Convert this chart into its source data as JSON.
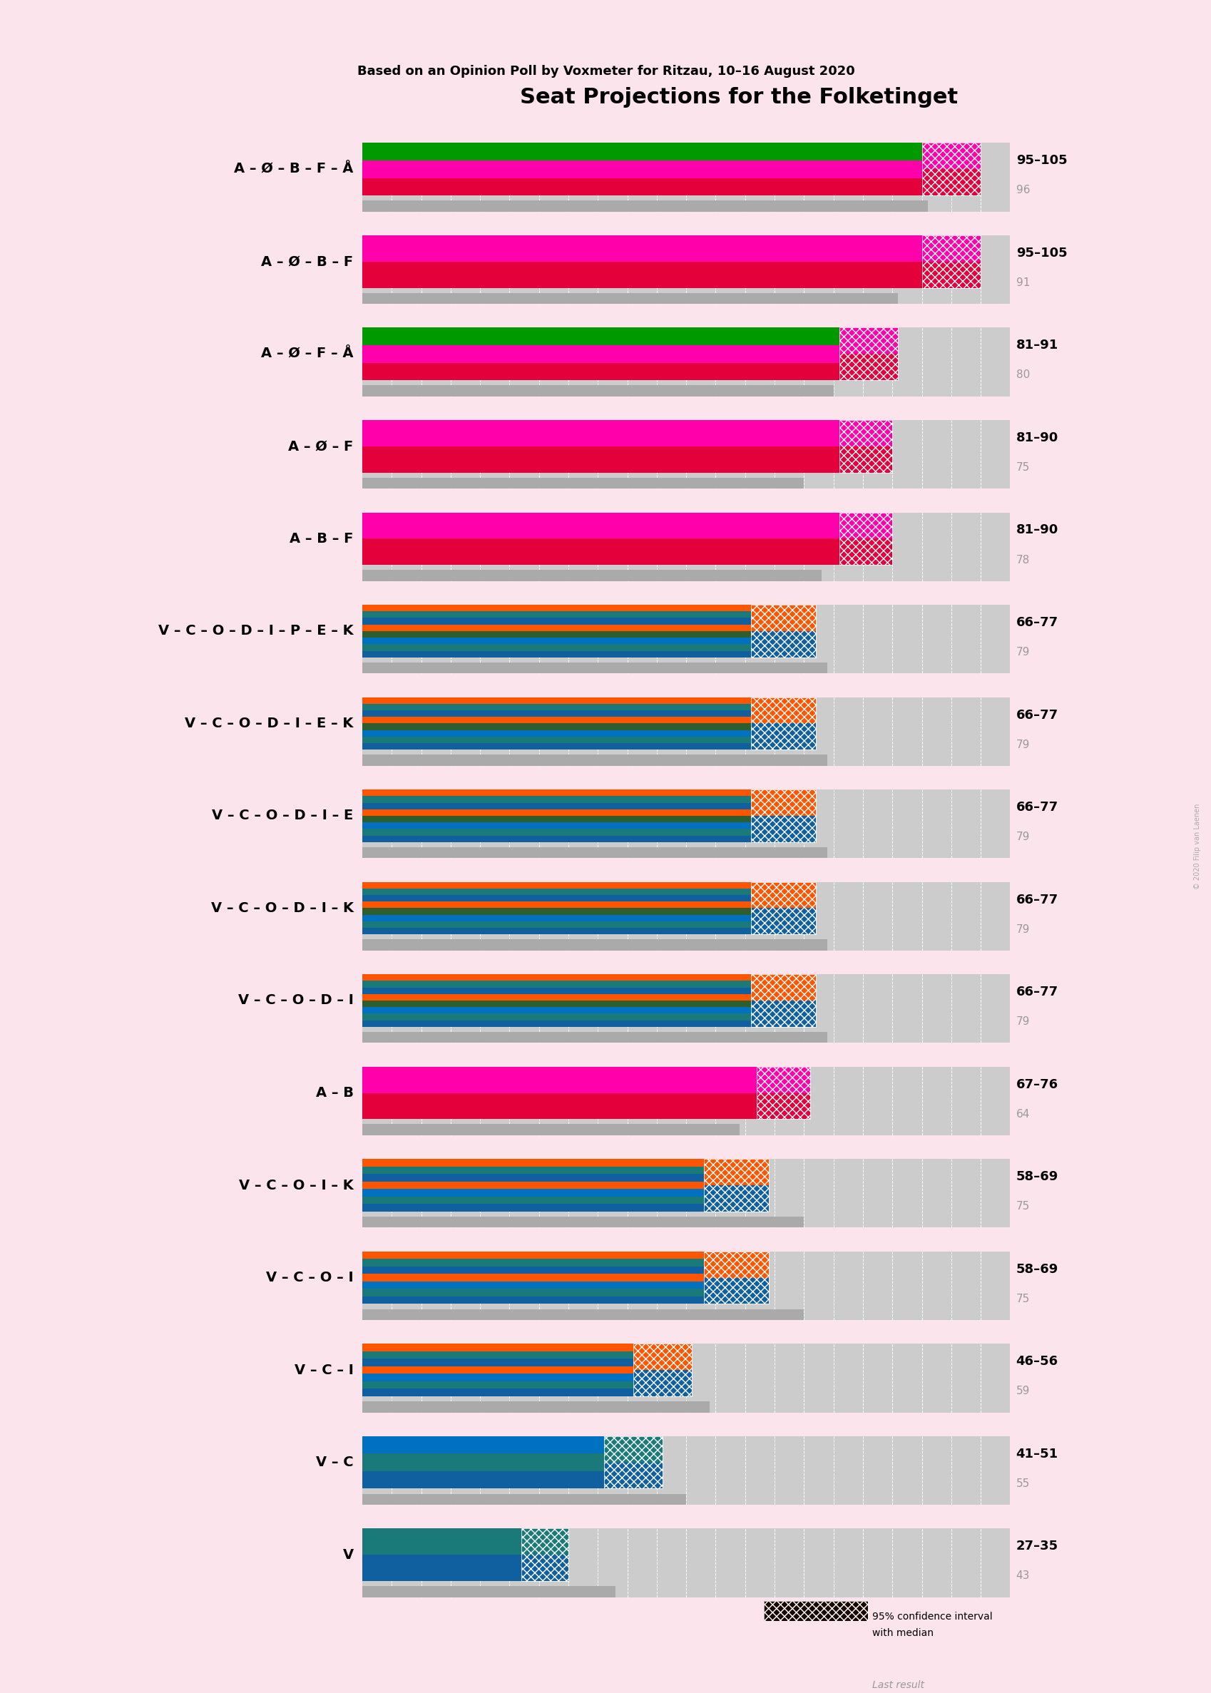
{
  "title": "Seat Projections for the Folketinget",
  "subtitle": "Based on an Opinion Poll by Voxmeter for Ritzau, 10–16 August 2020",
  "background_color": "#fce4ec",
  "watermark": "© 2020 Filip van Laenen",
  "coalitions": [
    {
      "label": "A – Ø – B – F – Å",
      "range_low": 95,
      "range_high": 105,
      "last": 96,
      "bar_colors": [
        "#E4003B",
        "#FF00AA",
        "#009900"
      ],
      "ci_colors": [
        "#E4003B",
        "#FF00AA"
      ],
      "underline": false,
      "type": "left"
    },
    {
      "label": "A – Ø – B – F",
      "range_low": 95,
      "range_high": 105,
      "last": 91,
      "bar_colors": [
        "#E4003B",
        "#FF00AA"
      ],
      "ci_colors": [
        "#E4003B",
        "#FF00AA"
      ],
      "underline": true,
      "type": "left"
    },
    {
      "label": "A – Ø – F – Å",
      "range_low": 81,
      "range_high": 91,
      "last": 80,
      "bar_colors": [
        "#E4003B",
        "#FF00AA",
        "#009900"
      ],
      "ci_colors": [
        "#E4003B",
        "#FF00AA"
      ],
      "underline": false,
      "type": "left"
    },
    {
      "label": "A – Ø – F",
      "range_low": 81,
      "range_high": 90,
      "last": 75,
      "bar_colors": [
        "#E4003B",
        "#FF00AA"
      ],
      "ci_colors": [
        "#E4003B",
        "#FF00AA"
      ],
      "underline": false,
      "type": "left"
    },
    {
      "label": "A – B – F",
      "range_low": 81,
      "range_high": 90,
      "last": 78,
      "bar_colors": [
        "#E4003B",
        "#FF00AA"
      ],
      "ci_colors": [
        "#E4003B",
        "#FF00AA"
      ],
      "underline": false,
      "type": "left"
    },
    {
      "label": "V – C – O – D – I – P – E – K",
      "range_low": 66,
      "range_high": 77,
      "last": 79,
      "bar_colors": [
        "#1060A0",
        "#1A7A7A",
        "#0070C0",
        "#2E5E2E",
        "#FF5500",
        "#1060A0",
        "#1A7A7A",
        "#FF5500"
      ],
      "ci_colors": [
        "#1060A0",
        "#FF5500"
      ],
      "underline": false,
      "type": "right"
    },
    {
      "label": "V – C – O – D – I – E – K",
      "range_low": 66,
      "range_high": 77,
      "last": 79,
      "bar_colors": [
        "#1060A0",
        "#1A7A7A",
        "#0070C0",
        "#2E5E2E",
        "#FF5500",
        "#1060A0",
        "#1A7A7A",
        "#FF5500"
      ],
      "ci_colors": [
        "#1060A0",
        "#FF5500"
      ],
      "underline": false,
      "type": "right"
    },
    {
      "label": "V – C – O – D – I – E",
      "range_low": 66,
      "range_high": 77,
      "last": 79,
      "bar_colors": [
        "#1060A0",
        "#1A7A7A",
        "#0070C0",
        "#2E5E2E",
        "#FF5500",
        "#1060A0",
        "#1A7A7A",
        "#FF5500"
      ],
      "ci_colors": [
        "#1060A0",
        "#FF5500"
      ],
      "underline": false,
      "type": "right"
    },
    {
      "label": "V – C – O – D – I – K",
      "range_low": 66,
      "range_high": 77,
      "last": 79,
      "bar_colors": [
        "#1060A0",
        "#1A7A7A",
        "#0070C0",
        "#2E5E2E",
        "#FF5500",
        "#1060A0",
        "#1A7A7A",
        "#FF5500"
      ],
      "ci_colors": [
        "#1060A0",
        "#FF5500"
      ],
      "underline": false,
      "type": "right"
    },
    {
      "label": "V – C – O – D – I",
      "range_low": 66,
      "range_high": 77,
      "last": 79,
      "bar_colors": [
        "#1060A0",
        "#1A7A7A",
        "#0070C0",
        "#2E5E2E",
        "#FF5500",
        "#1060A0",
        "#1A7A7A",
        "#FF5500"
      ],
      "ci_colors": [
        "#1060A0",
        "#FF5500"
      ],
      "underline": false,
      "type": "right"
    },
    {
      "label": "A – B",
      "range_low": 67,
      "range_high": 76,
      "last": 64,
      "bar_colors": [
        "#E4003B",
        "#FF00AA"
      ],
      "ci_colors": [
        "#E4003B",
        "#FF00AA"
      ],
      "underline": false,
      "type": "left"
    },
    {
      "label": "V – C – O – I – K",
      "range_low": 58,
      "range_high": 69,
      "last": 75,
      "bar_colors": [
        "#1060A0",
        "#1A7A7A",
        "#0070C0",
        "#FF5500",
        "#1060A0",
        "#1A7A7A",
        "#FF5500"
      ],
      "ci_colors": [
        "#1060A0",
        "#FF5500"
      ],
      "underline": false,
      "type": "right"
    },
    {
      "label": "V – C – O – I",
      "range_low": 58,
      "range_high": 69,
      "last": 75,
      "bar_colors": [
        "#1060A0",
        "#1A7A7A",
        "#0070C0",
        "#FF5500",
        "#1060A0",
        "#1A7A7A",
        "#FF5500"
      ],
      "ci_colors": [
        "#1060A0",
        "#FF5500"
      ],
      "underline": false,
      "type": "right"
    },
    {
      "label": "V – C – I",
      "range_low": 46,
      "range_high": 56,
      "last": 59,
      "bar_colors": [
        "#1060A0",
        "#1A7A7A",
        "#0070C0",
        "#FF5500",
        "#1060A0",
        "#1A7A7A",
        "#FF5500"
      ],
      "ci_colors": [
        "#1060A0",
        "#FF5500"
      ],
      "underline": false,
      "type": "right"
    },
    {
      "label": "V – C",
      "range_low": 41,
      "range_high": 51,
      "last": 55,
      "bar_colors": [
        "#1060A0",
        "#1A7A7A",
        "#0070C0"
      ],
      "ci_colors": [
        "#1060A0",
        "#1A7A7A"
      ],
      "underline": false,
      "type": "right"
    },
    {
      "label": "V",
      "range_low": 27,
      "range_high": 35,
      "last": 43,
      "bar_colors": [
        "#1060A0",
        "#1A7A7A"
      ],
      "ci_colors": [
        "#1060A0",
        "#1A7A7A"
      ],
      "underline": false,
      "type": "right"
    }
  ],
  "x_max": 110,
  "majority_line": 90
}
